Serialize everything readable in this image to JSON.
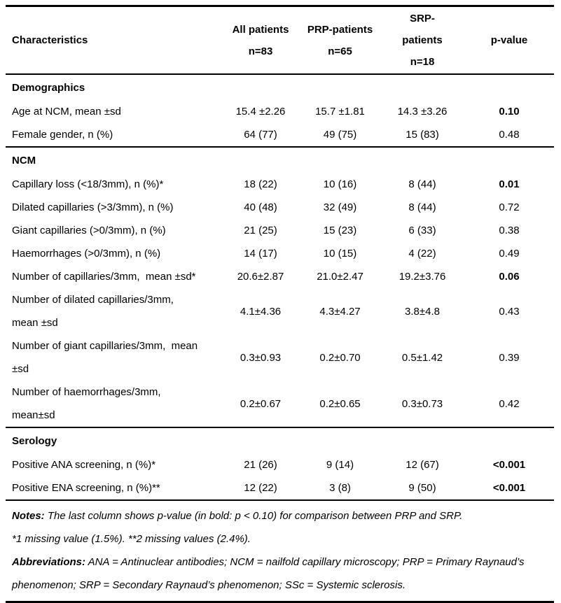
{
  "table": {
    "header": {
      "characteristics": "Characteristics",
      "all": "All patients\nn=83",
      "prp": "PRP-patients\nn=65",
      "srp": "SRP-\npatients\nn=18",
      "p": "p-value"
    },
    "sections": [
      {
        "title": "Demographics",
        "rows": [
          {
            "label": "Age at NCM, mean ±sd",
            "all": "15.4 ±2.26",
            "prp": "15.7 ±1.81",
            "srp": "14.3 ±3.26",
            "p": "0.10",
            "p_bold": true
          },
          {
            "label": "Female gender, n (%)",
            "all": "64 (77)",
            "prp": "49 (75)",
            "srp": "15 (83)",
            "p": "0.48",
            "p_bold": false
          }
        ]
      },
      {
        "title": "NCM",
        "rows": [
          {
            "label": "Capillary loss (<18/3mm), n (%)*",
            "all": "18 (22)",
            "prp": "10 (16)",
            "srp": "8 (44)",
            "p": "0.01",
            "p_bold": true
          },
          {
            "label": "Dilated capillaries (>3/3mm), n (%)",
            "all": "40 (48)",
            "prp": "32 (49)",
            "srp": "8 (44)",
            "p": "0.72",
            "p_bold": false
          },
          {
            "label": "Giant capillaries (>0/3mm), n (%)",
            "all": "21 (25)",
            "prp": "15 (23)",
            "srp": "6 (33)",
            "p": "0.38",
            "p_bold": false
          },
          {
            "label": "Haemorrhages (>0/3mm), n (%)",
            "all": "14 (17)",
            "prp": "10 (15)",
            "srp": "4 (22)",
            "p": "0.49",
            "p_bold": false
          },
          {
            "label": "Number of capillaries/3mm,  mean ±sd*",
            "all": "20.6±2.87",
            "prp": "21.0±2.47",
            "srp": "19.2±3.76",
            "p": "0.06",
            "p_bold": true
          },
          {
            "label": "Number of dilated capillaries/3mm,\nmean ±sd",
            "all": "4.1±4.36",
            "prp": "4.3±4.27",
            "srp": "3.8±4.8",
            "p": "0.43",
            "p_bold": false
          },
          {
            "label": "Number of giant capillaries/3mm,  mean\n±sd",
            "all": "0.3±0.93",
            "prp": "0.2±0.70",
            "srp": "0.5±1.42",
            "p": "0.39",
            "p_bold": false
          },
          {
            "label": "Number of haemorrhages/3mm,\nmean±sd",
            "all": "0.2±0.67",
            "prp": "0.2±0.65",
            "srp": "0.3±0.73",
            "p": "0.42",
            "p_bold": false
          }
        ]
      },
      {
        "title": "Serology",
        "rows": [
          {
            "label": "Positive ANA screening, n (%)*",
            "all": "21 (26)",
            "prp": "9 (14)",
            "srp": "12 (67)",
            "p": "<0.001",
            "p_bold": true
          },
          {
            "label": "Positive ENA screening, n (%)**",
            "all": "12 (22)",
            "prp": "3 (8)",
            "srp": "9 (50)",
            "p": "<0.001",
            "p_bold": true
          }
        ]
      }
    ]
  },
  "notes": {
    "notes_label": "Notes:",
    "notes_text": " The last column shows p-value (in bold: p < 0.10) for comparison between PRP and SRP.",
    "missing_text": "*1 missing value (1.5%). **2 missing values (2.4%).",
    "abbr_label": "Abbreviations:",
    "abbr_text": " ANA = Antinuclear antibodies; NCM = nailfold capillary microscopy; PRP = Primary Raynaud’s phenomenon; SRP = Secondary Raynaud’s phenomenon; SSc = Systemic sclerosis."
  }
}
